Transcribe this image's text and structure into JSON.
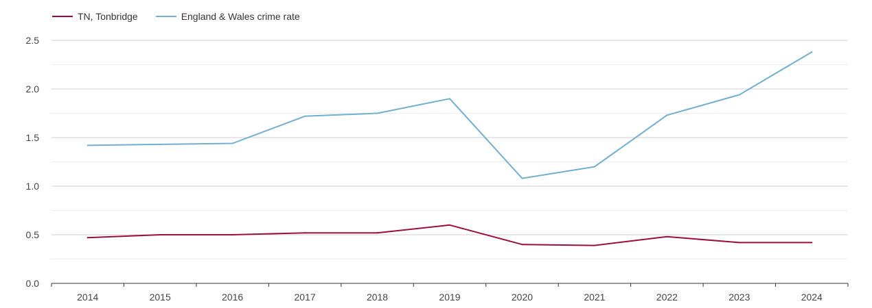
{
  "chart_data": {
    "type": "line",
    "title": "",
    "xlabel": "",
    "ylabel": "",
    "categories": [
      "2014",
      "2015",
      "2016",
      "2017",
      "2018",
      "2019",
      "2020",
      "2021",
      "2022",
      "2023",
      "2024"
    ],
    "series": [
      {
        "name": "TN, Tonbridge",
        "color": "#9b0d3b",
        "values": [
          0.47,
          0.5,
          0.5,
          0.52,
          0.52,
          0.6,
          0.4,
          0.39,
          0.48,
          0.42,
          0.42
        ]
      },
      {
        "name": "England & Wales crime rate",
        "color": "#71aed0",
        "values": [
          1.42,
          1.43,
          1.44,
          1.72,
          1.75,
          1.9,
          1.08,
          1.2,
          1.73,
          1.94,
          2.38
        ]
      }
    ],
    "ylim": [
      0,
      2.5
    ],
    "yticks": [
      "0.0",
      "0.5",
      "1.0",
      "1.5",
      "2.0",
      "2.5"
    ],
    "grid": true,
    "legend_position": "top-left"
  }
}
